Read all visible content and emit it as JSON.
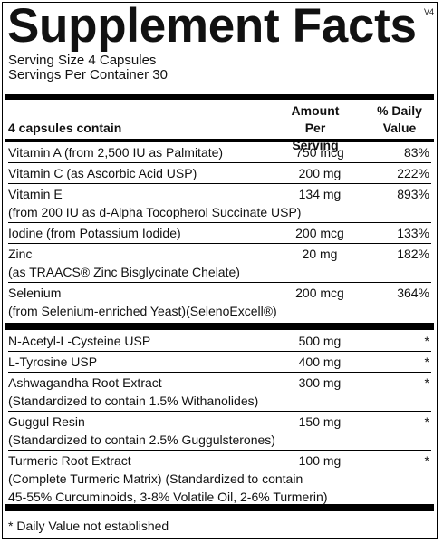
{
  "title": "Supplement Facts",
  "version": "V4",
  "serving": [
    "Serving Size 4 Capsules",
    "Servings Per Container 30"
  ],
  "header": {
    "label": "4 capsules contain",
    "amount": [
      "Amount Per",
      "Serving"
    ],
    "dv": [
      "% Daily",
      "Value"
    ]
  },
  "sections": [
    {
      "rows": [
        {
          "name": [
            "Vitamin A (from 2,500 IU as Palmitate)"
          ],
          "amount": "750 mcg",
          "dv": "83%"
        },
        {
          "name": [
            "Vitamin C (as Ascorbic Acid USP)"
          ],
          "amount": "200 mg",
          "dv": "222%"
        },
        {
          "name": [
            "Vitamin E",
            "(from 200 IU as d-Alpha Tocopherol Succinate USP)"
          ],
          "amount": "134 mg",
          "dv": "893%"
        },
        {
          "name": [
            "Iodine (from Potassium Iodide)"
          ],
          "amount": "200 mcg",
          "dv": "133%"
        },
        {
          "name": [
            "Zinc",
            "(as TRAACS® Zinc Bisglycinate Chelate)"
          ],
          "amount": "20 mg",
          "dv": "182%"
        },
        {
          "name": [
            "Selenium",
            "(from Selenium-enriched Yeast)(SelenoExcell®)"
          ],
          "amount": "200 mcg",
          "dv": "364%"
        }
      ]
    },
    {
      "rows": [
        {
          "name": [
            "N-Acetyl-L-Cysteine USP"
          ],
          "amount": "500 mg",
          "dv": "*"
        },
        {
          "name": [
            "L-Tyrosine USP"
          ],
          "amount": "400 mg",
          "dv": "*"
        },
        {
          "name": [
            "Ashwagandha Root Extract",
            "(Standardized to contain 1.5% Withanolides)"
          ],
          "amount": "300 mg",
          "dv": "*"
        },
        {
          "name": [
            "Guggul Resin",
            "(Standardized to contain 2.5% Guggulsterones)"
          ],
          "amount": "150 mg",
          "dv": "*"
        },
        {
          "name": [
            "Turmeric Root Extract",
            "(Complete Turmeric Matrix) (Standardized to contain",
            "45-55% Curcuminoids, 3-8% Volatile Oil, 2-6% Turmerin)"
          ],
          "amount": "100 mg",
          "dv": "*"
        }
      ]
    }
  ],
  "footnote": "* Daily Value not established"
}
